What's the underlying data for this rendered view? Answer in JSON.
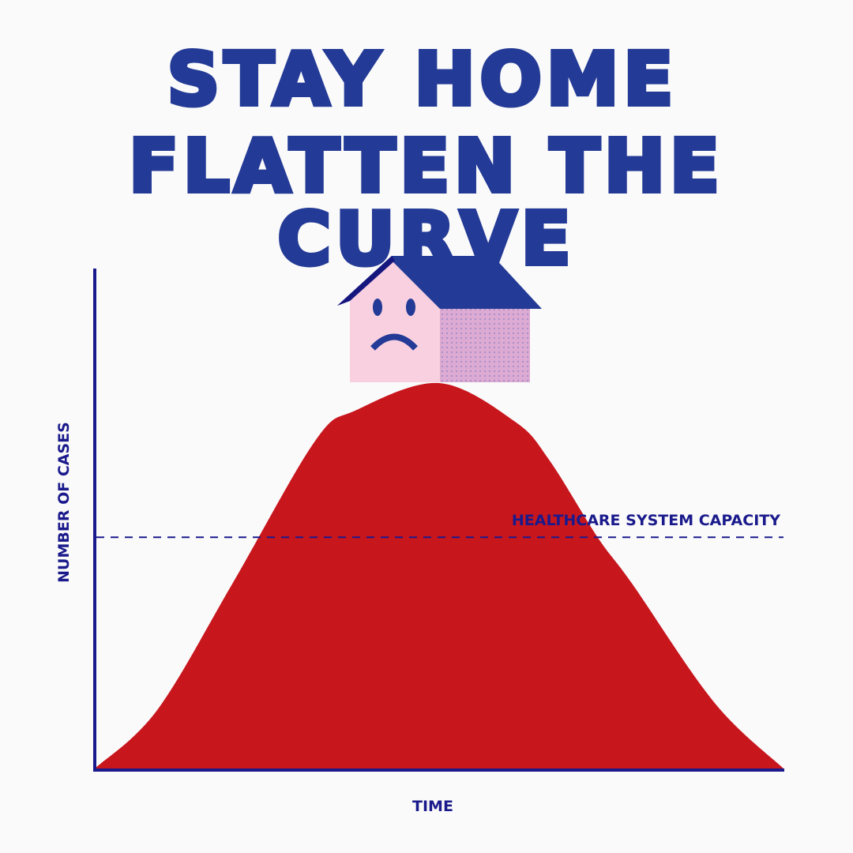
{
  "title": {
    "line1": "STAY HOME",
    "line2": "FLATTEN THE CURVE"
  },
  "colors": {
    "title": "#233a96",
    "axis": "#1a1a8c",
    "curve": "#c8161d",
    "house_front": "#f9d0e0",
    "house_side": "#dcaad2",
    "roof": "#233a96"
  },
  "icons": {
    "house": "sad-house-icon"
  },
  "chart_data": {
    "type": "area",
    "xlabel": "TIME",
    "ylabel": "NUMBER OF CASES",
    "annotation": "HEALTHCARE SYSTEM CAPACITY",
    "capacity_level": 0.6,
    "ylim": [
      0,
      1
    ],
    "xlim": [
      0,
      1
    ],
    "grid": false,
    "x": [
      0,
      0.09,
      0.2,
      0.32,
      0.38,
      0.5,
      0.61,
      0.66,
      0.73,
      0.78,
      0.9,
      1
    ],
    "values": [
      0,
      0.15,
      0.48,
      0.85,
      0.93,
      1.0,
      0.9,
      0.8,
      0.6,
      0.48,
      0.17,
      0
    ]
  }
}
